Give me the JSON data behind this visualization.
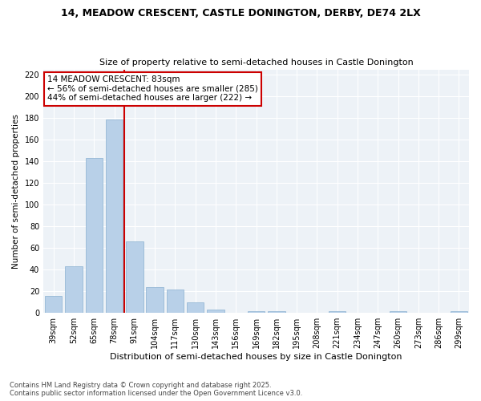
{
  "title": "14, MEADOW CRESCENT, CASTLE DONINGTON, DERBY, DE74 2LX",
  "subtitle": "Size of property relative to semi-detached houses in Castle Donington",
  "xlabel": "Distribution of semi-detached houses by size in Castle Donington",
  "ylabel": "Number of semi-detached properties",
  "categories": [
    "39sqm",
    "52sqm",
    "65sqm",
    "78sqm",
    "91sqm",
    "104sqm",
    "117sqm",
    "130sqm",
    "143sqm",
    "156sqm",
    "169sqm",
    "182sqm",
    "195sqm",
    "208sqm",
    "221sqm",
    "234sqm",
    "247sqm",
    "260sqm",
    "273sqm",
    "286sqm",
    "299sqm"
  ],
  "values": [
    16,
    43,
    143,
    179,
    66,
    24,
    22,
    10,
    3,
    0,
    2,
    2,
    0,
    0,
    2,
    0,
    0,
    2,
    0,
    0,
    2
  ],
  "bar_color": "#b8d0e8",
  "bar_edge_color": "#8ab0d0",
  "property_line_color": "#cc0000",
  "property_line_x": 3.5,
  "annotation_line1": "14 MEADOW CRESCENT: 83sqm",
  "annotation_line2": "← 56% of semi-detached houses are smaller (285)",
  "annotation_line3": "44% of semi-detached houses are larger (222) →",
  "annotation_box_color": "#ffffff",
  "annotation_box_edge_color": "#cc0000",
  "ylim": [
    0,
    225
  ],
  "yticks": [
    0,
    20,
    40,
    60,
    80,
    100,
    120,
    140,
    160,
    180,
    200,
    220
  ],
  "background_color": "#edf2f7",
  "plot_bg_color": "#edf2f7",
  "grid_color": "#ffffff",
  "footer_line1": "Contains HM Land Registry data © Crown copyright and database right 2025.",
  "footer_line2": "Contains public sector information licensed under the Open Government Licence v3.0.",
  "title_fontsize": 9,
  "subtitle_fontsize": 8,
  "xlabel_fontsize": 8,
  "ylabel_fontsize": 7.5,
  "tick_fontsize": 7,
  "annotation_fontsize": 7.5,
  "footer_fontsize": 6
}
